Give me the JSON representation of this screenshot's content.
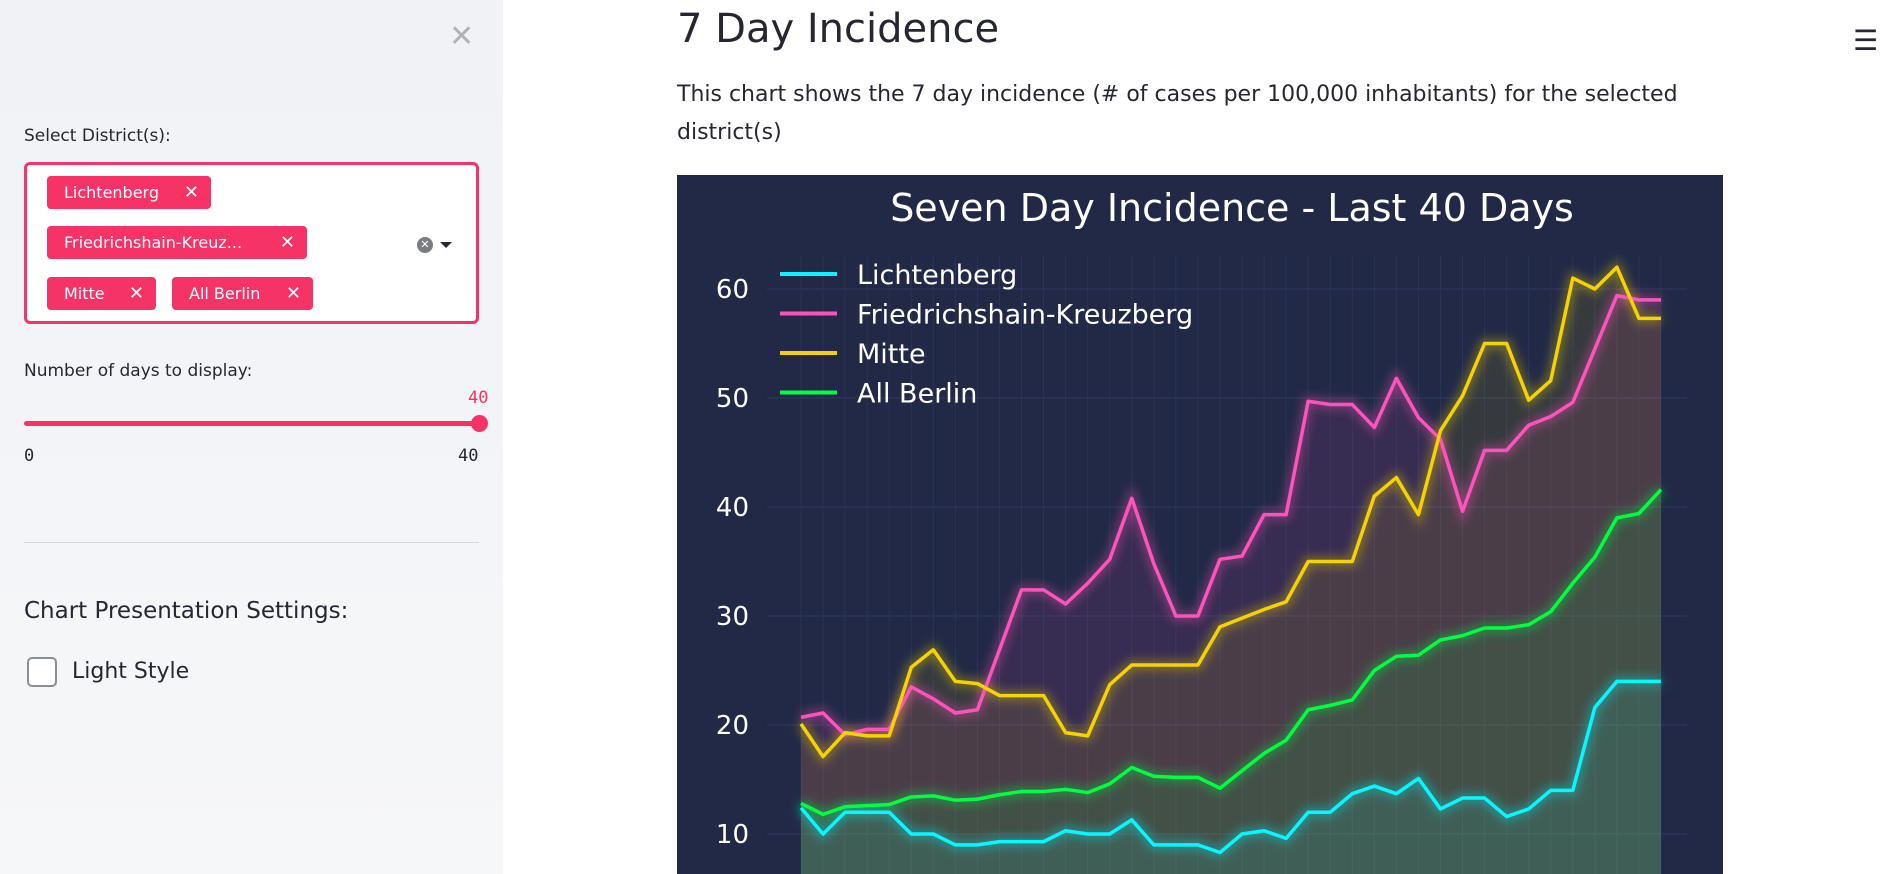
{
  "sidebar": {
    "close_icon": "close-icon",
    "district_label": "Select District(s):",
    "selected_districts": [
      "Lichtenberg",
      "Friedrichshain-Kreuz...",
      "Mitte",
      "All Berlin"
    ],
    "days_label": "Number of days to display:",
    "days_value": "40",
    "days_min": "0",
    "days_max": "40",
    "presentation_heading": "Chart Presentation Settings:",
    "light_style_label": "Light Style",
    "light_style_checked": false,
    "accent_color": "#f63366"
  },
  "main": {
    "title": "7 Day Incidence",
    "description": "This chart shows the 7 day incidence (# of cases per 100,000 inhabitants) for the selected district(s)",
    "menu_icon": "hamburger-icon"
  },
  "chart_data": {
    "type": "line",
    "title": "Seven Day Incidence - Last 40 Days",
    "background": "#212946",
    "grid": true,
    "legend_placement": "top-left",
    "y_ticks": [
      "10",
      "20",
      "30",
      "40",
      "50",
      "60"
    ],
    "ylim": [
      0,
      63
    ],
    "x": [
      1,
      2,
      3,
      4,
      5,
      6,
      7,
      8,
      9,
      10,
      11,
      12,
      13,
      14,
      15,
      16,
      17,
      18,
      19,
      20,
      21,
      22,
      23,
      24,
      25,
      26,
      27,
      28,
      29,
      30,
      31,
      32,
      33,
      34,
      35,
      36,
      37,
      38,
      39,
      40
    ],
    "series": [
      {
        "name": "Lichtenberg",
        "color": "#08F7FE",
        "values": [
          12.4,
          10,
          12,
          12,
          12,
          10,
          10,
          9,
          9,
          9.3,
          9.3,
          9.3,
          10.3,
          10,
          10,
          11.3,
          9,
          9,
          9,
          8.3,
          10,
          10.3,
          9.6,
          12,
          12,
          13.7,
          14.4,
          13.7,
          15.1,
          12.3,
          13.3,
          13.3,
          11.6,
          12.3,
          14,
          14,
          21.6,
          24,
          24,
          24
        ]
      },
      {
        "name": "Friedrichshain-Kreuzberg",
        "color": "#FE53BB",
        "values": [
          20.7,
          21.1,
          19.1,
          19.6,
          19.6,
          23.5,
          22.4,
          21.1,
          21.4,
          26.9,
          32.4,
          32.4,
          31.1,
          33,
          35.2,
          40.8,
          34.8,
          30,
          30,
          35.2,
          35.5,
          39.3,
          39.3,
          49.7,
          49.4,
          49.4,
          47.3,
          51.8,
          48.2,
          46.2,
          39.6,
          45.2,
          45.2,
          47.5,
          48.3,
          49.6,
          54.5,
          59.4,
          59,
          59
        ]
      },
      {
        "name": "Mitte",
        "color": "#F5D300",
        "values": [
          20.1,
          17.1,
          19.3,
          19,
          19,
          25.3,
          26.9,
          24,
          23.8,
          22.7,
          22.7,
          22.7,
          19.3,
          19,
          23.7,
          25.5,
          25.5,
          25.5,
          25.5,
          29,
          29.8,
          30.6,
          31.3,
          35,
          35,
          35,
          41,
          42.7,
          39.3,
          47,
          50.2,
          55,
          55,
          49.8,
          51.6,
          61,
          60,
          62,
          57.3,
          57.3
        ]
      },
      {
        "name": "All Berlin",
        "color": "#00ff41",
        "values": [
          12.8,
          11.8,
          12.5,
          12.6,
          12.7,
          13.4,
          13.5,
          13.1,
          13.2,
          13.6,
          13.9,
          13.9,
          14.1,
          13.8,
          14.6,
          16.1,
          15.3,
          15.2,
          15.2,
          14.2,
          15.8,
          17.4,
          18.6,
          21.4,
          21.8,
          22.3,
          25,
          26.3,
          26.4,
          27.8,
          28.2,
          28.9,
          28.9,
          29.2,
          30.4,
          33,
          35.4,
          39,
          39.4,
          41.6
        ]
      }
    ]
  }
}
